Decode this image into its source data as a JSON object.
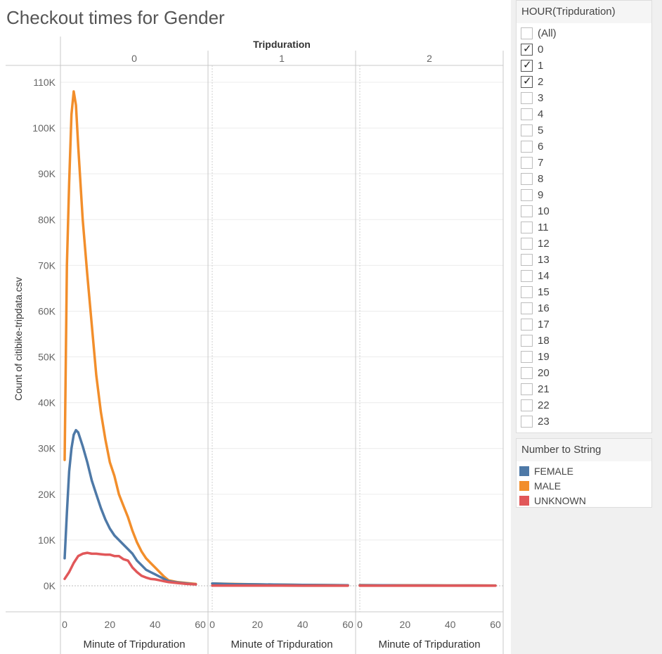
{
  "title": "Checkout times for Gender",
  "filter": {
    "title": "HOUR(Tripduration)",
    "items": [
      {
        "label": "(All)",
        "checked": false
      },
      {
        "label": "0",
        "checked": true
      },
      {
        "label": "1",
        "checked": true
      },
      {
        "label": "2",
        "checked": true
      },
      {
        "label": "3",
        "checked": false
      },
      {
        "label": "4",
        "checked": false
      },
      {
        "label": "5",
        "checked": false
      },
      {
        "label": "6",
        "checked": false
      },
      {
        "label": "7",
        "checked": false
      },
      {
        "label": "8",
        "checked": false
      },
      {
        "label": "9",
        "checked": false
      },
      {
        "label": "10",
        "checked": false
      },
      {
        "label": "11",
        "checked": false
      },
      {
        "label": "12",
        "checked": false
      },
      {
        "label": "13",
        "checked": false
      },
      {
        "label": "14",
        "checked": false
      },
      {
        "label": "15",
        "checked": false
      },
      {
        "label": "16",
        "checked": false
      },
      {
        "label": "17",
        "checked": false
      },
      {
        "label": "18",
        "checked": false
      },
      {
        "label": "19",
        "checked": false
      },
      {
        "label": "20",
        "checked": false
      },
      {
        "label": "21",
        "checked": false
      },
      {
        "label": "22",
        "checked": false
      },
      {
        "label": "23",
        "checked": false
      }
    ]
  },
  "legend": {
    "title": "Number to String",
    "items": [
      {
        "label": "FEMALE",
        "color": "#4e79a7"
      },
      {
        "label": "MALE",
        "color": "#f28e2b"
      },
      {
        "label": "UNKNOWN",
        "color": "#e15759"
      }
    ]
  },
  "chart_data": {
    "type": "line",
    "title": "Checkout times for Gender",
    "column_header": "Tripduration",
    "panels": [
      "0",
      "1",
      "2"
    ],
    "xlabel": "Minute of Tripduration",
    "ylabel": "Count of citibike-tripdata.csv",
    "xlim": [
      0,
      60
    ],
    "x_ticks": [
      0,
      20,
      40,
      60
    ],
    "ylim": [
      0,
      110000
    ],
    "y_ticks": [
      0,
      10000,
      20000,
      30000,
      40000,
      50000,
      60000,
      70000,
      80000,
      90000,
      100000,
      110000
    ],
    "y_tick_labels": [
      "0K",
      "10K",
      "20K",
      "30K",
      "40K",
      "50K",
      "60K",
      "70K",
      "80K",
      "90K",
      "100K",
      "110K"
    ],
    "series": [
      {
        "name": "FEMALE",
        "color": "#4e79a7",
        "panels": [
          {
            "x": [
              0,
              1,
              2,
              3,
              4,
              5,
              6,
              7,
              8,
              10,
              12,
              14,
              16,
              18,
              20,
              22,
              24,
              26,
              28,
              30,
              32,
              34,
              36,
              38,
              40,
              42,
              44,
              46,
              50,
              54,
              58
            ],
            "y": [
              6000,
              16000,
              25000,
              30000,
              33000,
              34000,
              33500,
              32000,
              30500,
              27000,
              23000,
              20000,
              17000,
              14500,
              12500,
              11000,
              10000,
              9000,
              8000,
              7000,
              5500,
              4500,
              3500,
              3000,
              2500,
              2000,
              1500,
              1000,
              700,
              500,
              300
            ]
          },
          {
            "x": [
              0,
              10,
              20,
              30,
              40,
              50,
              60
            ],
            "y": [
              500,
              350,
              300,
              250,
              200,
              150,
              100
            ]
          },
          {
            "x": [
              0,
              10,
              20,
              30,
              40,
              50,
              60
            ],
            "y": [
              100,
              100,
              80,
              80,
              60,
              60,
              50
            ]
          }
        ]
      },
      {
        "name": "MALE",
        "color": "#f28e2b",
        "panels": [
          {
            "x": [
              0,
              1,
              2,
              3,
              4,
              5,
              6,
              7,
              8,
              10,
              12,
              14,
              16,
              18,
              20,
              22,
              24,
              26,
              28,
              30,
              32,
              34,
              36,
              38,
              40,
              42,
              44,
              46,
              50,
              54,
              58
            ],
            "y": [
              27500,
              70000,
              88000,
              103000,
              108000,
              105000,
              96000,
              88000,
              80000,
              68000,
              57000,
              46000,
              38000,
              32000,
              27000,
              24000,
              20000,
              17500,
              15000,
              12000,
              9500,
              7500,
              6000,
              5000,
              4000,
              3000,
              2000,
              1200,
              800,
              600,
              400
            ]
          },
          {
            "x": [
              0,
              10,
              20,
              30,
              40,
              50,
              60
            ],
            "y": [
              500,
              400,
              300,
              250,
              200,
              150,
              100
            ]
          },
          {
            "x": [
              0,
              10,
              20,
              30,
              40,
              50,
              60
            ],
            "y": [
              150,
              120,
              100,
              90,
              80,
              70,
              60
            ]
          }
        ]
      },
      {
        "name": "UNKNOWN",
        "color": "#e15759",
        "panels": [
          {
            "x": [
              0,
              2,
              4,
              6,
              8,
              10,
              12,
              14,
              16,
              18,
              20,
              22,
              24,
              26,
              28,
              30,
              32,
              34,
              36,
              38,
              40,
              42,
              44,
              46,
              50,
              54,
              58
            ],
            "y": [
              1500,
              3000,
              5000,
              6500,
              7000,
              7200,
              7000,
              7000,
              6900,
              6800,
              6800,
              6500,
              6500,
              5800,
              5500,
              4000,
              3000,
              2200,
              1800,
              1500,
              1400,
              1200,
              1000,
              800,
              600,
              400,
              300
            ]
          },
          {
            "x": [
              0,
              10,
              20,
              30,
              40,
              50,
              60
            ],
            "y": [
              50,
              40,
              30,
              30,
              20,
              20,
              10
            ]
          },
          {
            "x": [
              0,
              10,
              20,
              30,
              40,
              50,
              60
            ],
            "y": [
              20,
              20,
              15,
              15,
              10,
              10,
              10
            ]
          }
        ]
      }
    ]
  }
}
